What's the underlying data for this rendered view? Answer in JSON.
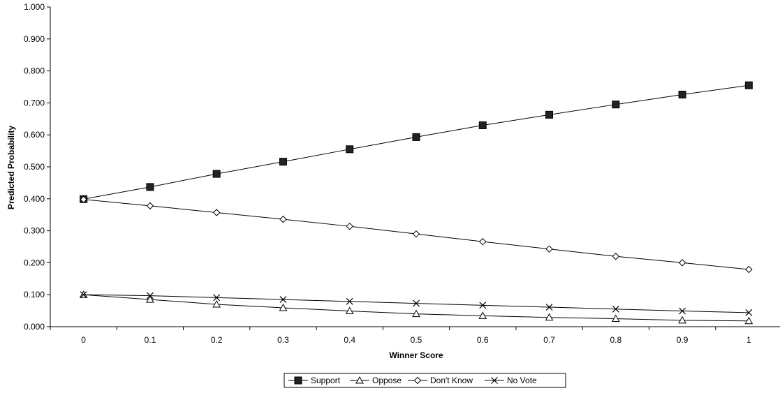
{
  "chart_data": {
    "type": "line",
    "title": "",
    "xlabel": "Winner Score",
    "ylabel": "Predicted Probability",
    "categories": [
      "0",
      "0.1",
      "0.2",
      "0.3",
      "0.4",
      "0.5",
      "0.6",
      "0.7",
      "0.8",
      "0.9",
      "1"
    ],
    "ylim": [
      0,
      1
    ],
    "yticks": [
      "0.000",
      "0.100",
      "0.200",
      "0.300",
      "0.400",
      "0.500",
      "0.600",
      "0.700",
      "0.800",
      "0.900",
      "1.000"
    ],
    "grid": false,
    "legend_position": "bottom",
    "series": [
      {
        "name": "Support",
        "marker": "filled-square",
        "values": [
          0.399,
          0.437,
          0.478,
          0.516,
          0.555,
          0.593,
          0.63,
          0.663,
          0.695,
          0.726,
          0.755
        ]
      },
      {
        "name": "Oppose",
        "marker": "open-triangle",
        "values": [
          0.1,
          0.085,
          0.07,
          0.059,
          0.049,
          0.04,
          0.034,
          0.029,
          0.025,
          0.02,
          0.018
        ]
      },
      {
        "name": "Don't Know",
        "marker": "open-diamond",
        "values": [
          0.398,
          0.378,
          0.357,
          0.336,
          0.314,
          0.29,
          0.266,
          0.243,
          0.22,
          0.2,
          0.179
        ]
      },
      {
        "name": "No Vote",
        "marker": "x-cross",
        "values": [
          0.1,
          0.097,
          0.091,
          0.085,
          0.079,
          0.073,
          0.067,
          0.061,
          0.055,
          0.049,
          0.044
        ]
      }
    ]
  }
}
